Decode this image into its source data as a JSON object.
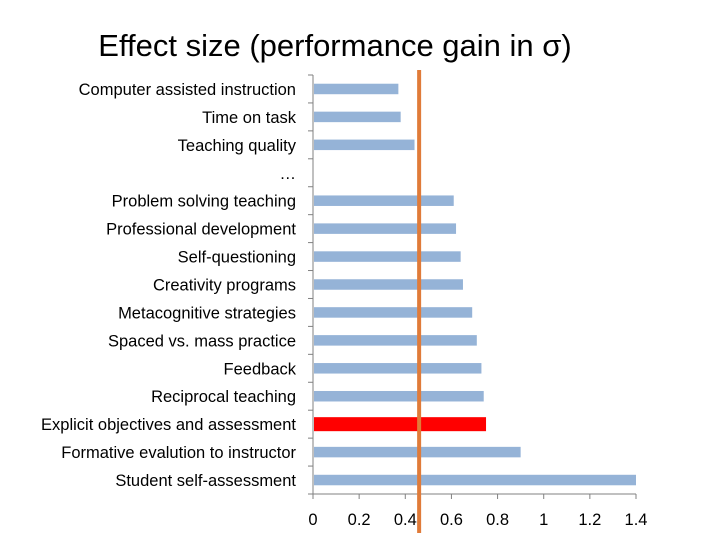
{
  "chart_data": {
    "type": "bar",
    "orientation": "horizontal",
    "title": "Effect size (performance gain in σ)",
    "categories": [
      "Computer assisted instruction",
      "Time on task",
      "Teaching quality",
      "…",
      "Problem solving teaching",
      "Professional development",
      "Self-questioning",
      "Creativity programs",
      "Metacognitive strategies",
      "Spaced vs. mass practice",
      "Feedback",
      "Reciprocal teaching",
      "Explicit objectives and assessment",
      "Formative evalution to instructor",
      "Student self-assessment"
    ],
    "values": [
      0.37,
      0.38,
      0.44,
      null,
      0.61,
      0.62,
      0.64,
      0.65,
      0.69,
      0.71,
      0.73,
      0.74,
      0.75,
      0.9,
      1.4
    ],
    "highlight_index": 12,
    "reference_line": 0.46,
    "xlim": [
      0,
      1.4
    ],
    "xticks": [
      "0",
      "0.2",
      "0.4",
      "0.6",
      "0.8",
      "1",
      "1.2",
      "1.4"
    ],
    "xtick_values": [
      0,
      0.2,
      0.4,
      0.6,
      0.8,
      1,
      1.2,
      1.4
    ],
    "colors": {
      "bar": "#95B3D7",
      "highlight": "#FF0000",
      "reference_line": "#E07B39",
      "axis": "#808080"
    },
    "grid": false,
    "legend": "none"
  }
}
